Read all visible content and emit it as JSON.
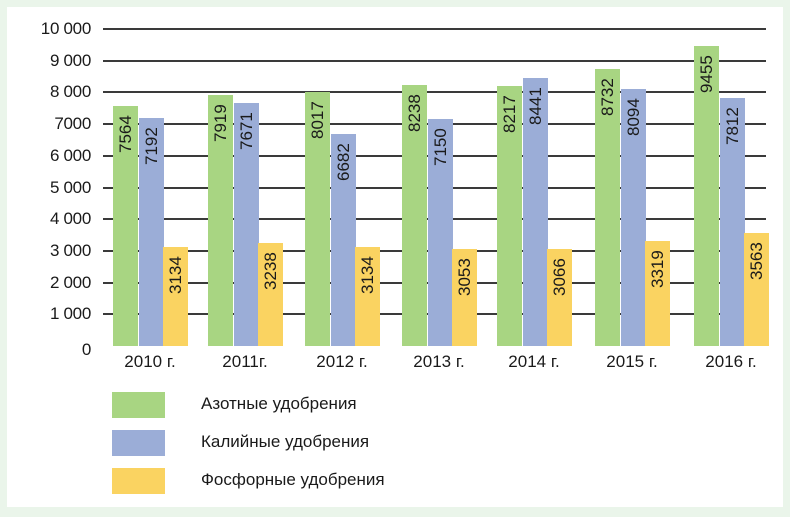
{
  "chart_data": {
    "type": "bar",
    "title": "",
    "xlabel": "",
    "ylabel": "",
    "ylim": [
      0,
      10000
    ],
    "yticks": [
      0,
      1000,
      2000,
      3000,
      4000,
      5000,
      6000,
      7000,
      8000,
      9000,
      10000
    ],
    "ytick_labels": [
      "0",
      "1 000",
      "2 000",
      "3 000",
      "4 000",
      "5 000",
      "6 000",
      "7000",
      "8 000",
      "9 000",
      "10 000"
    ],
    "categories": [
      "2010 г.",
      "2011г.",
      "2012 г.",
      "2013 г.",
      "2014 г.",
      "2015 г.",
      "2016 г."
    ],
    "series": [
      {
        "name": "Азотные удобрения",
        "color": "#A8D582",
        "values": [
          7564,
          7919,
          8017,
          8238,
          8217,
          8732,
          9455
        ]
      },
      {
        "name": "Калийные удобрения",
        "color": "#9BADD7",
        "values": [
          7192,
          7671,
          6682,
          7150,
          8441,
          8094,
          7812
        ]
      },
      {
        "name": "Фосфорные удобрения",
        "color": "#FAD361",
        "values": [
          3134,
          3238,
          3134,
          3053,
          3066,
          3319,
          3563
        ]
      }
    ],
    "grid": true,
    "legend_position": "bottom-left",
    "data_labels": "vertical, inside top of bars"
  },
  "legend": [
    {
      "label": "Азотные удобрения",
      "color": "#A8D582"
    },
    {
      "label": "Калийные удобрения",
      "color": "#9BADD7"
    },
    {
      "label": "Фосфорные удобрения",
      "color": "#FAD361"
    }
  ],
  "colors": {
    "background_border": "#EAF5EA",
    "panel": "#FFFFFF",
    "grid": "#3A3A3A"
  }
}
